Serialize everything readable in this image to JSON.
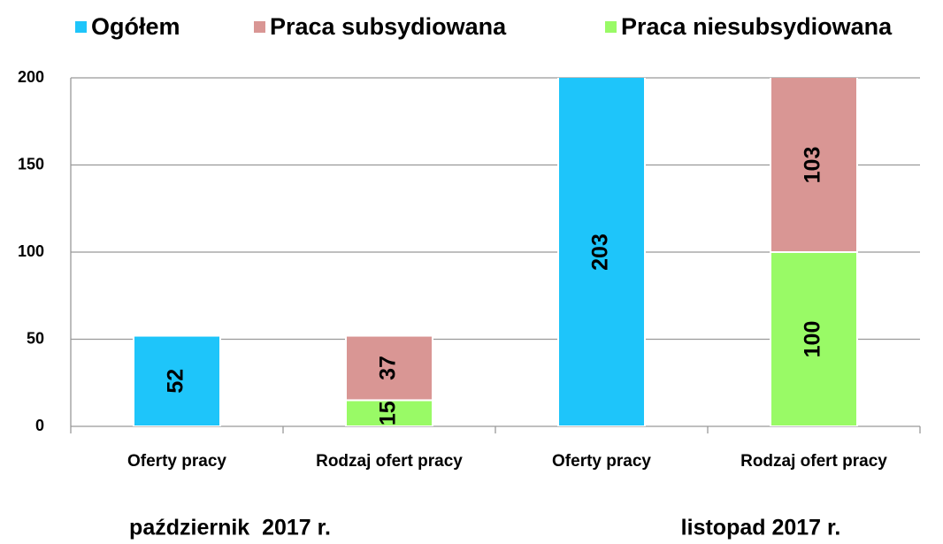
{
  "chart_data": {
    "type": "bar",
    "stacked": true,
    "categories": [
      "Oferty pracy",
      "Rodzaj ofert pracy",
      "Oferty pracy",
      "Rodzaj ofert pracy"
    ],
    "groups": [
      "październik  2017 r.",
      "listopad 2017 r."
    ],
    "series": [
      {
        "name": "Ogółem",
        "color": "#1ec5fa",
        "values": [
          52,
          null,
          203,
          null
        ]
      },
      {
        "name": "Praca subsydiowana",
        "color": "#d99694",
        "values": [
          null,
          37,
          null,
          103
        ]
      },
      {
        "name": "Praca niesubsydiowana",
        "color": "#99fa66",
        "values": [
          null,
          15,
          null,
          100
        ]
      }
    ],
    "ylim": [
      0,
      200
    ],
    "yticks": [
      0,
      50,
      100,
      150,
      200
    ],
    "grid": true,
    "legend": "top"
  }
}
